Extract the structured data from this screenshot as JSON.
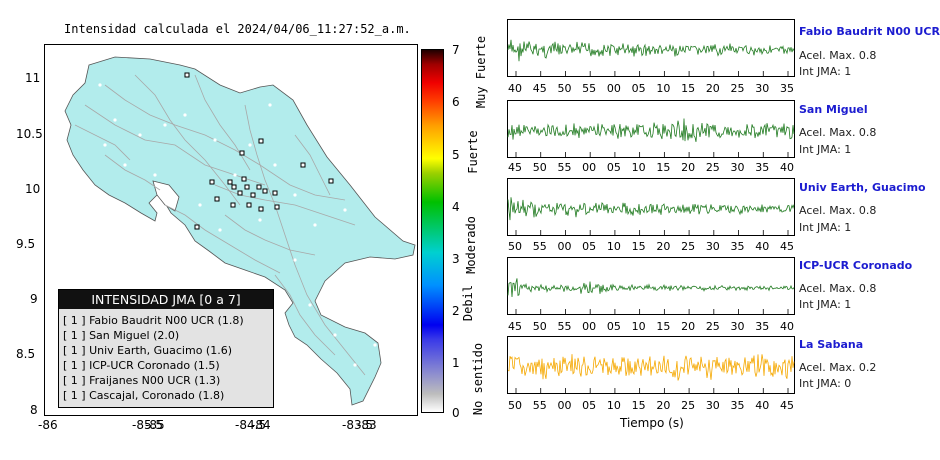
{
  "map": {
    "title": "Intensidad calculada el 2024/04/06_11:27:52_a.m.",
    "x_ticks": [
      "-86",
      "-85.5",
      "-85",
      "-84.5",
      "-84",
      "-83.5",
      "-83"
    ],
    "y_ticks": [
      "11",
      "10.5",
      "10",
      "9.5",
      "9",
      "8.5",
      "8"
    ],
    "land_color": "#b2ecec",
    "legend": {
      "title": "INTENSIDAD JMA [0 a 7]",
      "items": [
        "[ 1 ]  Fabio Baudrit N00 UCR (1.8)",
        "[ 1 ]  San Miguel (2.0)",
        "[ 1 ]  Univ Earth, Guacimo (1.6)",
        "[ 1 ]  ICP-UCR Coronado (1.5)",
        "[ 1 ]  Fraijanes N00 UCR (1.3)",
        "[ 1 ]  Cascajal, Coronado (1.8)"
      ]
    }
  },
  "colorbar": {
    "numbers": [
      "7",
      "6",
      "5",
      "4",
      "3",
      "2",
      "1",
      "0"
    ],
    "categories": [
      "Muy Fuerte",
      "Fuerte",
      "Moderado",
      "Debil",
      "No sentido"
    ]
  },
  "stations": [
    {
      "name": "Fabio Baudrit N00 UCR",
      "accel": "Acel. Max. 0.8",
      "jma": "Int JMA: 1",
      "color": "#1f7a1f",
      "ticks": [
        "40",
        "45",
        "50",
        "55",
        "00",
        "05",
        "10",
        "15",
        "20",
        "25",
        "30",
        "35"
      ]
    },
    {
      "name": "San Miguel",
      "accel": "Acel. Max. 0.8",
      "jma": "Int JMA: 1",
      "color": "#1f7a1f",
      "ticks": [
        "45",
        "50",
        "55",
        "00",
        "05",
        "10",
        "15",
        "20",
        "25",
        "30",
        "35",
        "40"
      ]
    },
    {
      "name": "Univ Earth, Guacimo",
      "accel": "Acel. Max. 0.8",
      "jma": "Int JMA: 1",
      "color": "#1f7a1f",
      "ticks": [
        "50",
        "55",
        "00",
        "05",
        "10",
        "15",
        "20",
        "25",
        "30",
        "35",
        "40",
        "45"
      ]
    },
    {
      "name": "ICP-UCR Coronado",
      "accel": "Acel. Max. 0.8",
      "jma": "Int JMA: 1",
      "color": "#1f7a1f",
      "ticks": [
        "45",
        "50",
        "55",
        "00",
        "05",
        "10",
        "15",
        "20",
        "25",
        "30",
        "35",
        "40"
      ]
    },
    {
      "name": "La Sabana",
      "accel": "Acel. Max. 0.2",
      "jma": "Int JMA: 0",
      "color": "#f5a800",
      "ticks": [
        "50",
        "55",
        "00",
        "05",
        "10",
        "15",
        "20",
        "25",
        "30",
        "35",
        "40",
        "45"
      ]
    }
  ],
  "time_axis_label": "Tiempo (s)"
}
